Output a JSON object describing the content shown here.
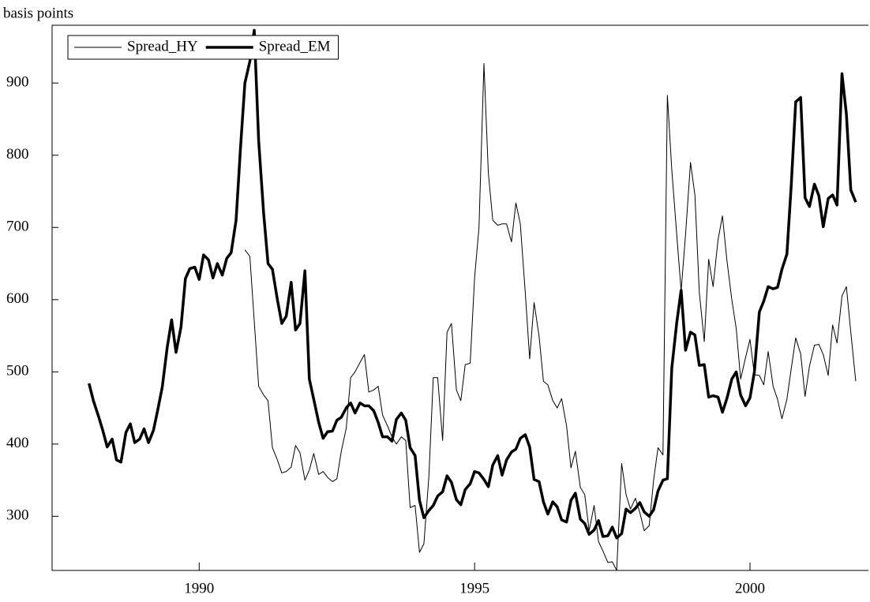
{
  "chart_data": {
    "type": "line",
    "y_label": "basis points",
    "x": [
      1988,
      1988.08,
      1988.17,
      1988.25,
      1988.33,
      1988.42,
      1988.5,
      1988.58,
      1988.67,
      1988.75,
      1988.83,
      1988.92,
      1989,
      1989.08,
      1989.17,
      1989.25,
      1989.33,
      1989.42,
      1989.5,
      1989.58,
      1989.67,
      1989.75,
      1989.83,
      1989.92,
      1990,
      1990.08,
      1990.17,
      1990.25,
      1990.33,
      1990.42,
      1990.5,
      1990.58,
      1990.67,
      1990.75,
      1990.83,
      1990.92,
      1991,
      1991.08,
      1991.17,
      1991.25,
      1991.33,
      1991.42,
      1991.5,
      1991.58,
      1991.67,
      1991.75,
      1991.83,
      1991.92,
      1992,
      1992.08,
      1992.17,
      1992.25,
      1992.33,
      1992.42,
      1992.5,
      1992.58,
      1992.67,
      1992.75,
      1992.83,
      1992.92,
      1993,
      1993.08,
      1993.17,
      1993.25,
      1993.33,
      1993.42,
      1993.5,
      1993.58,
      1993.67,
      1993.75,
      1993.83,
      1993.92,
      1994,
      1994.08,
      1994.17,
      1994.25,
      1994.33,
      1994.42,
      1994.5,
      1994.58,
      1994.67,
      1994.75,
      1994.83,
      1994.92,
      1995,
      1995.08,
      1995.17,
      1995.25,
      1995.33,
      1995.42,
      1995.5,
      1995.58,
      1995.67,
      1995.75,
      1995.83,
      1995.92,
      1996,
      1996.08,
      1996.17,
      1996.25,
      1996.33,
      1996.42,
      1996.5,
      1996.58,
      1996.67,
      1996.75,
      1996.83,
      1996.92,
      1997,
      1997.08,
      1997.17,
      1997.25,
      1997.33,
      1997.42,
      1997.5,
      1997.58,
      1997.67,
      1997.75,
      1997.83,
      1997.92,
      1998,
      1998.08,
      1998.17,
      1998.25,
      1998.33,
      1998.42,
      1998.5,
      1998.58,
      1998.67,
      1998.75,
      1998.83,
      1998.92,
      1999,
      1999.08,
      1999.17,
      1999.25,
      1999.33,
      1999.42,
      1999.5,
      1999.58,
      1999.67,
      1999.75,
      1999.83,
      1999.92,
      2000,
      2000.08,
      2000.17,
      2000.25,
      2000.33,
      2000.42,
      2000.5,
      2000.58,
      2000.67,
      2000.75,
      2000.83,
      2000.92,
      2001,
      2001.08,
      2001.17,
      2001.25,
      2001.33,
      2001.42,
      2001.5,
      2001.58,
      2001.67,
      2001.75,
      2001.83,
      2001.92
    ],
    "series": [
      {
        "name": "Spread_HY",
        "color": "#000000",
        "width": 1,
        "values": [
          null,
          null,
          null,
          null,
          null,
          null,
          null,
          null,
          null,
          null,
          null,
          null,
          null,
          null,
          null,
          null,
          null,
          null,
          null,
          null,
          null,
          null,
          null,
          null,
          null,
          null,
          null,
          null,
          null,
          null,
          null,
          null,
          null,
          null,
          669,
          660,
          570,
          480,
          468,
          460,
          395,
          378,
          360,
          362,
          368,
          398,
          388,
          350,
          364,
          387,
          358,
          362,
          354,
          348,
          352,
          390,
          422,
          492,
          500,
          513,
          524,
          472,
          475,
          480,
          440,
          425,
          410,
          400,
          410,
          405,
          312,
          315,
          250,
          262,
          355,
          492,
          492,
          405,
          555,
          567,
          475,
          460,
          510,
          512,
          630,
          700,
          927,
          775,
          710,
          703,
          705,
          705,
          680,
          734,
          705,
          610,
          518,
          596,
          550,
          487,
          482,
          460,
          450,
          463,
          425,
          367,
          390,
          340,
          330,
          280,
          315,
          265,
          252,
          236,
          237,
          225,
          373,
          330,
          310,
          325,
          305,
          280,
          287,
          350,
          395,
          385,
          883,
          780,
          690,
          612,
          690,
          790,
          745,
          610,
          542,
          656,
          618,
          683,
          716,
          655,
          600,
          560,
          490,
          520,
          545,
          496,
          495,
          482,
          528,
          480,
          462,
          435,
          462,
          505,
          547,
          525,
          466,
          508,
          537,
          538,
          524,
          495,
          565,
          540,
          605,
          618,
          555,
          487
        ]
      },
      {
        "name": "Spread_EM",
        "color": "#000000",
        "width": 3.5,
        "values": [
          484,
          460,
          439,
          419,
          396,
          407,
          378,
          375,
          416,
          428,
          402,
          407,
          421,
          402,
          419,
          448,
          479,
          534,
          572,
          527,
          562,
          629,
          643,
          645,
          628,
          662,
          655,
          630,
          650,
          634,
          657,
          665,
          710,
          810,
          900,
          930,
          973,
          820,
          720,
          650,
          642,
          600,
          567,
          577,
          624,
          558,
          567,
          640,
          490,
          462,
          430,
          408,
          417,
          418,
          433,
          437,
          450,
          457,
          443,
          457,
          453,
          453,
          446,
          430,
          410,
          410,
          404,
          434,
          443,
          433,
          395,
          384,
          322,
          298,
          308,
          315,
          328,
          334,
          356,
          347,
          323,
          316,
          337,
          345,
          362,
          360,
          351,
          341,
          371,
          384,
          357,
          378,
          389,
          393,
          408,
          413,
          396,
          351,
          348,
          320,
          303,
          320,
          313,
          295,
          292,
          322,
          332,
          296,
          290,
          275,
          281,
          294,
          272,
          273,
          285,
          270,
          276,
          310,
          305,
          311,
          319,
          306,
          300,
          309,
          335,
          350,
          352,
          505,
          568,
          613,
          530,
          555,
          551,
          509,
          510,
          465,
          467,
          465,
          444,
          463,
          490,
          500,
          468,
          453,
          464,
          500,
          583,
          598,
          618,
          615,
          617,
          642,
          663,
          760,
          874,
          880,
          741,
          729,
          760,
          744,
          701,
          740,
          745,
          731,
          913,
          857,
          752,
          735
        ]
      }
    ],
    "xlim": [
      1987.33,
      2002.15
    ],
    "xticks": [
      1990,
      1995,
      2000
    ],
    "ylim": [
      225,
      980
    ],
    "yticks": [
      300,
      400,
      500,
      600,
      700,
      800,
      900
    ],
    "legend": "top-left"
  }
}
